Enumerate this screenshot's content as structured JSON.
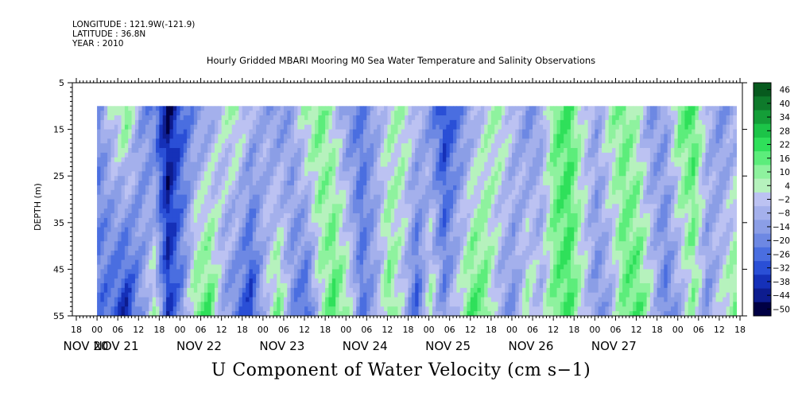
{
  "header": {
    "longitude": "LONGITUDE : 121.9W(-121.9)",
    "latitude": "LATITUDE : 36.8N",
    "year": "YEAR : 2010"
  },
  "chart_data": {
    "type": "heatmap",
    "title": "Hourly Gridded MBARI Mooring M0 Sea Water Temperature and Salinity Observations",
    "xlabel": "U Component of Water Velocity (cm s−1)",
    "ylabel": "DEPTH (m)",
    "y_ticks": [
      5,
      15,
      25,
      35,
      45,
      55
    ],
    "ylim": [
      55,
      5
    ],
    "data_depth_range": [
      10,
      55
    ],
    "x_hour_ticks": [
      "18",
      "00",
      "06",
      "12",
      "18",
      "00",
      "06",
      "12",
      "18",
      "00",
      "06",
      "12",
      "18",
      "00",
      "06",
      "12",
      "18",
      "00",
      "06",
      "12",
      "18",
      "00",
      "06",
      "12",
      "18",
      "00",
      "06",
      "12",
      "18",
      "00",
      "06",
      "12",
      "18"
    ],
    "x_day_labels": [
      "NOV 20",
      "NOV 21",
      "NOV 22",
      "NOV 23",
      "NOV 24",
      "NOV 25",
      "NOV 26",
      "NOV 27"
    ],
    "colorbar": {
      "levels": [
        -50,
        -44,
        -38,
        -32,
        -26,
        -20,
        -14,
        -8,
        -2,
        4,
        10,
        16,
        22,
        28,
        34,
        40,
        46
      ],
      "colors": [
        "#000044",
        "#0d1c8f",
        "#1530b8",
        "#2a4fd6",
        "#4a6ee0",
        "#6d88e3",
        "#8b9ee6",
        "#a4b0ec",
        "#bcc2f2",
        "#b6f2bd",
        "#8ef29e",
        "#5ced7b",
        "#2fe05a",
        "#1cc448",
        "#149e38",
        "#0e7a2b",
        "#075a1e"
      ],
      "tick_labels": [
        "46",
        "40",
        "34",
        "28",
        "22",
        "16",
        "10",
        "4",
        "−2",
        "−8",
        "−14",
        "−20",
        "−26",
        "−32",
        "−38",
        "−44",
        "−50"
      ]
    },
    "column_pattern": {
      "time_hours": [
        0,
        4,
        8,
        12,
        16,
        20,
        24,
        28,
        32,
        36,
        40,
        44,
        48,
        52,
        56,
        60,
        64,
        68,
        72,
        76,
        80,
        84,
        88,
        92,
        96,
        100,
        104,
        108,
        112,
        116,
        120,
        124,
        128,
        132,
        136,
        140,
        144,
        148,
        152,
        156,
        160,
        164,
        168,
        172,
        176,
        180,
        184,
        188,
        192
      ],
      "surface_u": [
        -14,
        4,
        16,
        -10,
        -20,
        -44,
        -26,
        -14,
        -8,
        4,
        10,
        -4,
        -8,
        -14,
        -8,
        10,
        16,
        4,
        -14,
        -20,
        -8,
        4,
        10,
        -2,
        -14,
        -32,
        -20,
        -8,
        4,
        10,
        -2,
        -14,
        -8,
        16,
        22,
        4,
        -8,
        10,
        16,
        4,
        -14,
        -8,
        16,
        22,
        -2,
        -14,
        -8,
        4,
        -14
      ],
      "bottom_u": [
        -20,
        -26,
        -38,
        -14,
        10,
        -32,
        -14,
        16,
        22,
        -8,
        -20,
        -32,
        -2,
        16,
        -14,
        -26,
        4,
        22,
        10,
        -20,
        -8,
        16,
        -2,
        -26,
        10,
        -14,
        4,
        22,
        16,
        -8,
        -14,
        10,
        -2,
        16,
        22,
        4,
        -14,
        -8,
        16,
        22,
        4,
        -20,
        -8,
        10,
        -14,
        4,
        16,
        -2,
        -8
      ]
    }
  }
}
